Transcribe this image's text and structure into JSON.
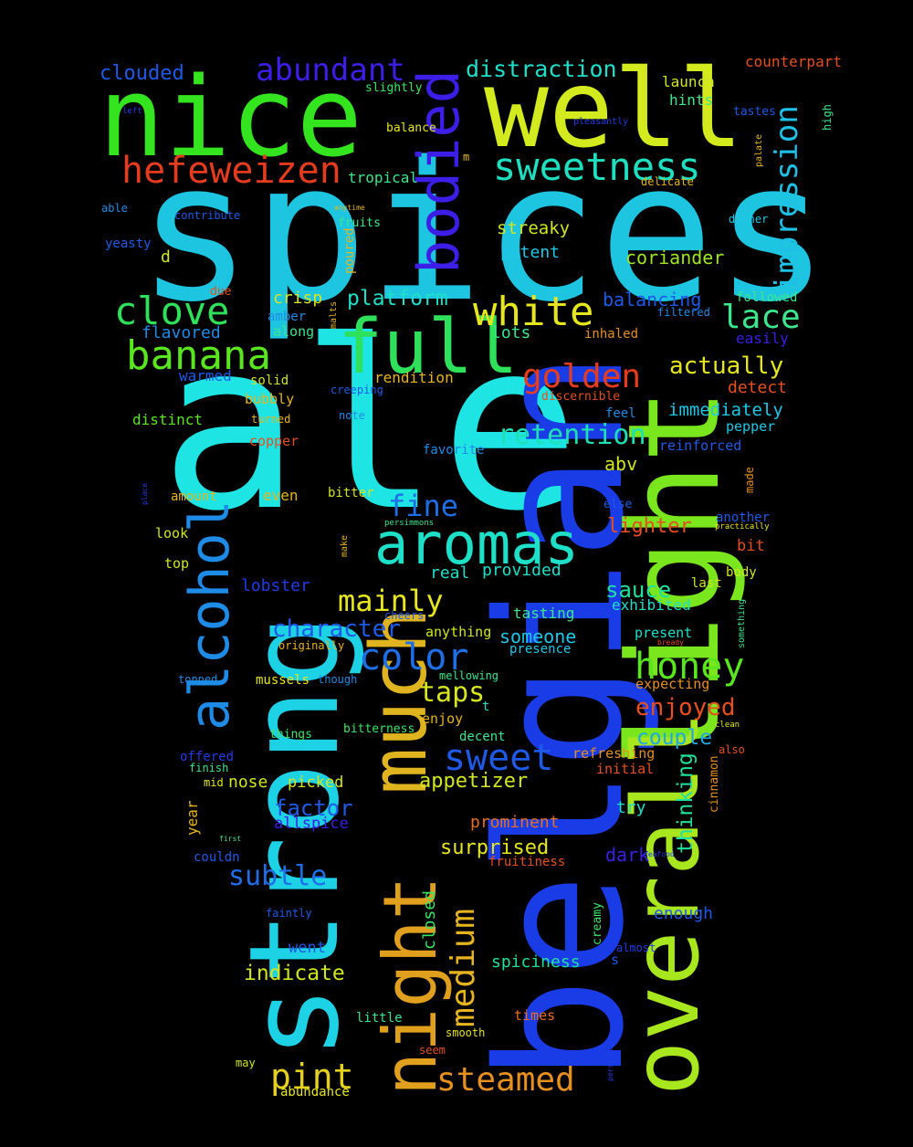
{
  "words": [
    {
      "text": "spices",
      "color": "#1ec5e0"
    },
    {
      "text": "ale",
      "color": "#1ee4e4"
    },
    {
      "text": "belgian",
      "color": "#1a3ce6"
    },
    {
      "text": "strong",
      "color": "#1ed2e6"
    },
    {
      "text": "well",
      "color": "#d2ea1e"
    },
    {
      "text": "nice",
      "color": "#34e41e"
    },
    {
      "text": "light",
      "color": "#7ae61e"
    },
    {
      "text": "overall",
      "color": "#a8e61e"
    },
    {
      "text": "much",
      "color": "#e0b41e"
    },
    {
      "text": "night",
      "color": "#e0a01e"
    },
    {
      "text": "full",
      "color": "#2ee05a"
    },
    {
      "text": "aromas",
      "color": "#1ee0c8"
    },
    {
      "text": "alcohol",
      "color": "#1e8ce6"
    },
    {
      "text": "bodied",
      "color": "#3c1ee6"
    },
    {
      "text": "sweetness",
      "color": "#1ee0c0"
    },
    {
      "text": "white",
      "color": "#e6e61e"
    },
    {
      "text": "banana",
      "color": "#5ae61e"
    },
    {
      "text": "clove",
      "color": "#2ee05a"
    },
    {
      "text": "hefeweizen",
      "color": "#e63c1e"
    },
    {
      "text": "abundant",
      "color": "#3c1ee6"
    },
    {
      "text": "impression",
      "color": "#1ec0e6"
    },
    {
      "text": "honey",
      "color": "#5ae61e"
    },
    {
      "text": "color",
      "color": "#1e6ee6"
    },
    {
      "text": "sweet",
      "color": "#1e5ae6"
    },
    {
      "text": "medium",
      "color": "#e6b41e"
    },
    {
      "text": "pint",
      "color": "#e6d01e"
    },
    {
      "text": "steamed",
      "color": "#e6901e"
    },
    {
      "text": "golden",
      "color": "#e63c1e"
    },
    {
      "text": "mainly",
      "color": "#e6e61e"
    },
    {
      "text": "lace",
      "color": "#3ce68c"
    },
    {
      "text": "retention",
      "color": "#1ee0b4"
    },
    {
      "text": "fine",
      "color": "#1e6ee6"
    },
    {
      "text": "subtle",
      "color": "#1e6ee6"
    },
    {
      "text": "character",
      "color": "#1e5ae6"
    },
    {
      "text": "distraction",
      "color": "#1ee0c8"
    },
    {
      "text": "actually",
      "color": "#e6e61e"
    },
    {
      "text": "enjoyed",
      "color": "#e6501e"
    },
    {
      "text": "taps",
      "color": "#d8e61e"
    },
    {
      "text": "platform",
      "color": "#1ee0c8"
    },
    {
      "text": "indicate",
      "color": "#d2e61e"
    },
    {
      "text": "thinking",
      "color": "#1ee0a0"
    },
    {
      "text": "factor",
      "color": "#1e5ae6"
    },
    {
      "text": "couple",
      "color": "#1ea8e6"
    },
    {
      "text": "sauce",
      "color": "#1ee0a0"
    },
    {
      "text": "lighter",
      "color": "#e6501e"
    },
    {
      "text": "clouded",
      "color": "#1e5ae6"
    },
    {
      "text": "surprised",
      "color": "#e6e61e"
    },
    {
      "text": "appetizer",
      "color": "#d2e61e"
    },
    {
      "text": "someone",
      "color": "#1ec8e6"
    },
    {
      "text": "balancing",
      "color": "#1e5ae6"
    },
    {
      "text": "coriander",
      "color": "#a0e61e"
    },
    {
      "text": "counterpart",
      "color": "#e6501e"
    },
    {
      "text": "prominent",
      "color": "#e66e1e"
    },
    {
      "text": "dark",
      "color": "#3c1ee6"
    },
    {
      "text": "closed",
      "color": "#3ce664"
    },
    {
      "text": "streaky",
      "color": "#d2e61e"
    },
    {
      "text": "potent",
      "color": "#1ec8e6"
    },
    {
      "text": "immediately",
      "color": "#1ec8e6"
    },
    {
      "text": "detect",
      "color": "#e6501e"
    },
    {
      "text": "lobster",
      "color": "#1e3ce6"
    },
    {
      "text": "real",
      "color": "#1ee0c8"
    },
    {
      "text": "provided",
      "color": "#1ee0c8"
    },
    {
      "text": "crisp",
      "color": "#d2e61e"
    },
    {
      "text": "lots",
      "color": "#3ce68c"
    },
    {
      "text": "spiciness",
      "color": "#1ee0a0"
    },
    {
      "text": "enough",
      "color": "#1e5ae6"
    },
    {
      "text": "abv",
      "color": "#d2e61e"
    },
    {
      "text": "tasting",
      "color": "#3ce68c"
    },
    {
      "text": "exhibited",
      "color": "#1ee0c8"
    },
    {
      "text": "launch",
      "color": "#d2e61e"
    },
    {
      "text": "hints",
      "color": "#3ce68c"
    },
    {
      "text": "flavored",
      "color": "#1e8ce6"
    },
    {
      "text": "rendition",
      "color": "#e6b41e"
    },
    {
      "text": "distinct",
      "color": "#5ae61e"
    },
    {
      "text": "try",
      "color": "#1ee0c8"
    },
    {
      "text": "picked",
      "color": "#d2e61e"
    },
    {
      "text": "nose",
      "color": "#d2e61e"
    },
    {
      "text": "went",
      "color": "#1e5ae6"
    },
    {
      "text": "allspice",
      "color": "#3c1ee6"
    },
    {
      "text": "warmed",
      "color": "#1e5ae6"
    },
    {
      "text": "present",
      "color": "#1ee0c8"
    },
    {
      "text": "anything",
      "color": "#d2e61e"
    },
    {
      "text": "reinforced",
      "color": "#1e5ae6"
    },
    {
      "text": "pepper",
      "color": "#1ec8e6"
    },
    {
      "text": "expecting",
      "color": "#e6901e"
    },
    {
      "text": "refreshing",
      "color": "#e6901e"
    },
    {
      "text": "initial",
      "color": "#e6501e"
    },
    {
      "text": "followed",
      "color": "#3ce68c"
    },
    {
      "text": "easily",
      "color": "#3c1ee6"
    },
    {
      "text": "inhaled",
      "color": "#e6901e"
    },
    {
      "text": "another",
      "color": "#1e5ae6"
    },
    {
      "text": "bit",
      "color": "#e6501e"
    },
    {
      "text": "last",
      "color": "#d2e61e"
    },
    {
      "text": "body",
      "color": "#d2e61e"
    },
    {
      "text": "year",
      "color": "#e6b41e"
    },
    {
      "text": "cinnamon",
      "color": "#e6901e"
    },
    {
      "text": "couldn",
      "color": "#1e5ae6"
    },
    {
      "text": "offered",
      "color": "#1e3ce6"
    },
    {
      "text": "even",
      "color": "#e6b41e"
    },
    {
      "text": "bitter",
      "color": "#d2e61e"
    },
    {
      "text": "look",
      "color": "#d2e61e"
    },
    {
      "text": "top",
      "color": "#d2e61e"
    },
    {
      "text": "amount",
      "color": "#e6b41e"
    },
    {
      "text": "copper",
      "color": "#e6501e"
    },
    {
      "text": "mussels",
      "color": "#e6e61e"
    },
    {
      "text": "decent",
      "color": "#3ce68c"
    },
    {
      "text": "enjoy",
      "color": "#e6b41e"
    },
    {
      "text": "little",
      "color": "#3ce68c"
    },
    {
      "text": "times",
      "color": "#e66e1e"
    },
    {
      "text": "abundance",
      "color": "#e6e61e"
    },
    {
      "text": "fruitiness",
      "color": "#e6501e"
    },
    {
      "text": "poured",
      "color": "#e6b41e"
    },
    {
      "text": "solid",
      "color": "#d2e61e"
    },
    {
      "text": "bubbly",
      "color": "#e6b41e"
    },
    {
      "text": "amber",
      "color": "#1e8ce6"
    },
    {
      "text": "along",
      "color": "#3ce68c"
    },
    {
      "text": "tropical",
      "color": "#3ce68c"
    },
    {
      "text": "fruits",
      "color": "#3ce68c"
    },
    {
      "text": "favorite",
      "color": "#1e8ce6"
    },
    {
      "text": "creamy",
      "color": "#3ce664"
    },
    {
      "text": "things",
      "color": "#3ce664"
    },
    {
      "text": "bitterness",
      "color": "#3ce664"
    },
    {
      "text": "slightly",
      "color": "#3ce664"
    },
    {
      "text": "balance",
      "color": "#e6e61e"
    },
    {
      "text": "delicate",
      "color": "#e6b41e"
    },
    {
      "text": "tastes",
      "color": "#1e5ae6"
    },
    {
      "text": "dinner",
      "color": "#1ec8e6"
    },
    {
      "text": "filtered",
      "color": "#1e8ce6"
    },
    {
      "text": "discernible",
      "color": "#e6501e"
    },
    {
      "text": "feel",
      "color": "#1e8ce6"
    },
    {
      "text": "else",
      "color": "#1e5ae6"
    },
    {
      "text": "made",
      "color": "#e6901e"
    },
    {
      "text": "something",
      "color": "#3ce68c"
    },
    {
      "text": "presence",
      "color": "#1ec8e6"
    },
    {
      "text": "mellowing",
      "color": "#3ce68c"
    },
    {
      "text": "though",
      "color": "#1e8ce6"
    },
    {
      "text": "topped",
      "color": "#1e8ce6"
    },
    {
      "text": "finish",
      "color": "#3ce68c"
    },
    {
      "text": "mid",
      "color": "#e6e61e"
    },
    {
      "text": "smooth",
      "color": "#e6e61e"
    },
    {
      "text": "seem",
      "color": "#e6501e"
    },
    {
      "text": "may",
      "color": "#d2e61e"
    },
    {
      "text": "faintly",
      "color": "#1e5ae6"
    },
    {
      "text": "almost",
      "color": "#1e3ce6"
    },
    {
      "text": "s",
      "color": "#1e5ae6"
    },
    {
      "text": "t",
      "color": "#1ee0c8"
    },
    {
      "text": "d",
      "color": "#d2e61e"
    },
    {
      "text": "m",
      "color": "#e6b41e"
    },
    {
      "text": "yeasty",
      "color": "#1e5ae6"
    },
    {
      "text": "able",
      "color": "#1e8ce6"
    },
    {
      "text": "contribute",
      "color": "#1e5ae6"
    },
    {
      "text": "due",
      "color": "#e6501e"
    },
    {
      "text": "malts",
      "color": "#e6b41e"
    },
    {
      "text": "turned",
      "color": "#e6b41e"
    },
    {
      "text": "creeping",
      "color": "#1e5ae6"
    },
    {
      "text": "note",
      "color": "#1e8ce6"
    },
    {
      "text": "make",
      "color": "#e6b41e"
    },
    {
      "text": "persimmons",
      "color": "#3ce68c"
    },
    {
      "text": "cheers",
      "color": "#1e5ae6"
    },
    {
      "text": "originally",
      "color": "#e6b41e"
    },
    {
      "text": "anytime",
      "color": "#e6b41e"
    },
    {
      "text": "pleasantly",
      "color": "#1e3ce6"
    },
    {
      "text": "palate",
      "color": "#e6b41e"
    },
    {
      "text": "high",
      "color": "#3ce68c"
    },
    {
      "text": "left",
      "color": "#1e3ce6"
    },
    {
      "text": "practically",
      "color": "#e6e61e"
    },
    {
      "text": "bready",
      "color": "#e6501e"
    },
    {
      "text": "clean",
      "color": "#e6e61e"
    },
    {
      "text": "also",
      "color": "#e6501e"
    },
    {
      "text": "seafood",
      "color": "#1e3ce6"
    },
    {
      "text": "first",
      "color": "#3ce68c"
    },
    {
      "text": "place",
      "color": "#1e3ce6"
    },
    {
      "text": "persistent",
      "color": "#1e3ce6"
    }
  ]
}
